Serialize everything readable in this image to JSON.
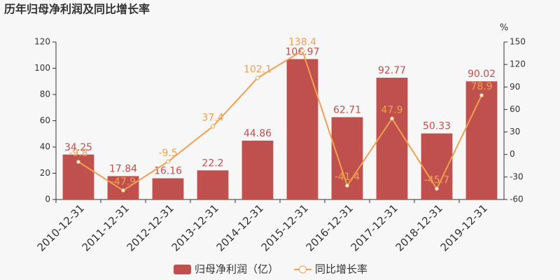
{
  "chart_data": {
    "type": "bar",
    "title": "历年归母净利润及同比增长率",
    "categories": [
      "2010-12-31",
      "2011-12-31",
      "2012-12-31",
      "2013-12-31",
      "2014-12-31",
      "2015-12-31",
      "2016-12-31",
      "2017-12-31",
      "2018-12-31",
      "2019-12-31"
    ],
    "series": [
      {
        "name": "归母净利润（亿）",
        "color": "#c0504d",
        "values": [
          34.25,
          17.84,
          16.16,
          22.2,
          44.86,
          106.97,
          62.71,
          92.77,
          50.33,
          90.02
        ]
      },
      {
        "name": "同比增长率",
        "type": "line",
        "axis": "y2",
        "color": "#f0a050",
        "values": [
          -9.8,
          -47.9,
          -9.5,
          37.4,
          102.1,
          138.4,
          -41.4,
          47.9,
          -45.7,
          78.9
        ]
      }
    ],
    "ylim": [
      0,
      120
    ],
    "yticks": [
      0,
      20,
      40,
      60,
      80,
      100,
      120
    ],
    "y2label": "%",
    "y2lim": [
      -60,
      150
    ],
    "y2ticks": [
      -60,
      -30,
      0,
      30,
      60,
      90,
      120,
      150
    ],
    "legend": "bottom"
  }
}
